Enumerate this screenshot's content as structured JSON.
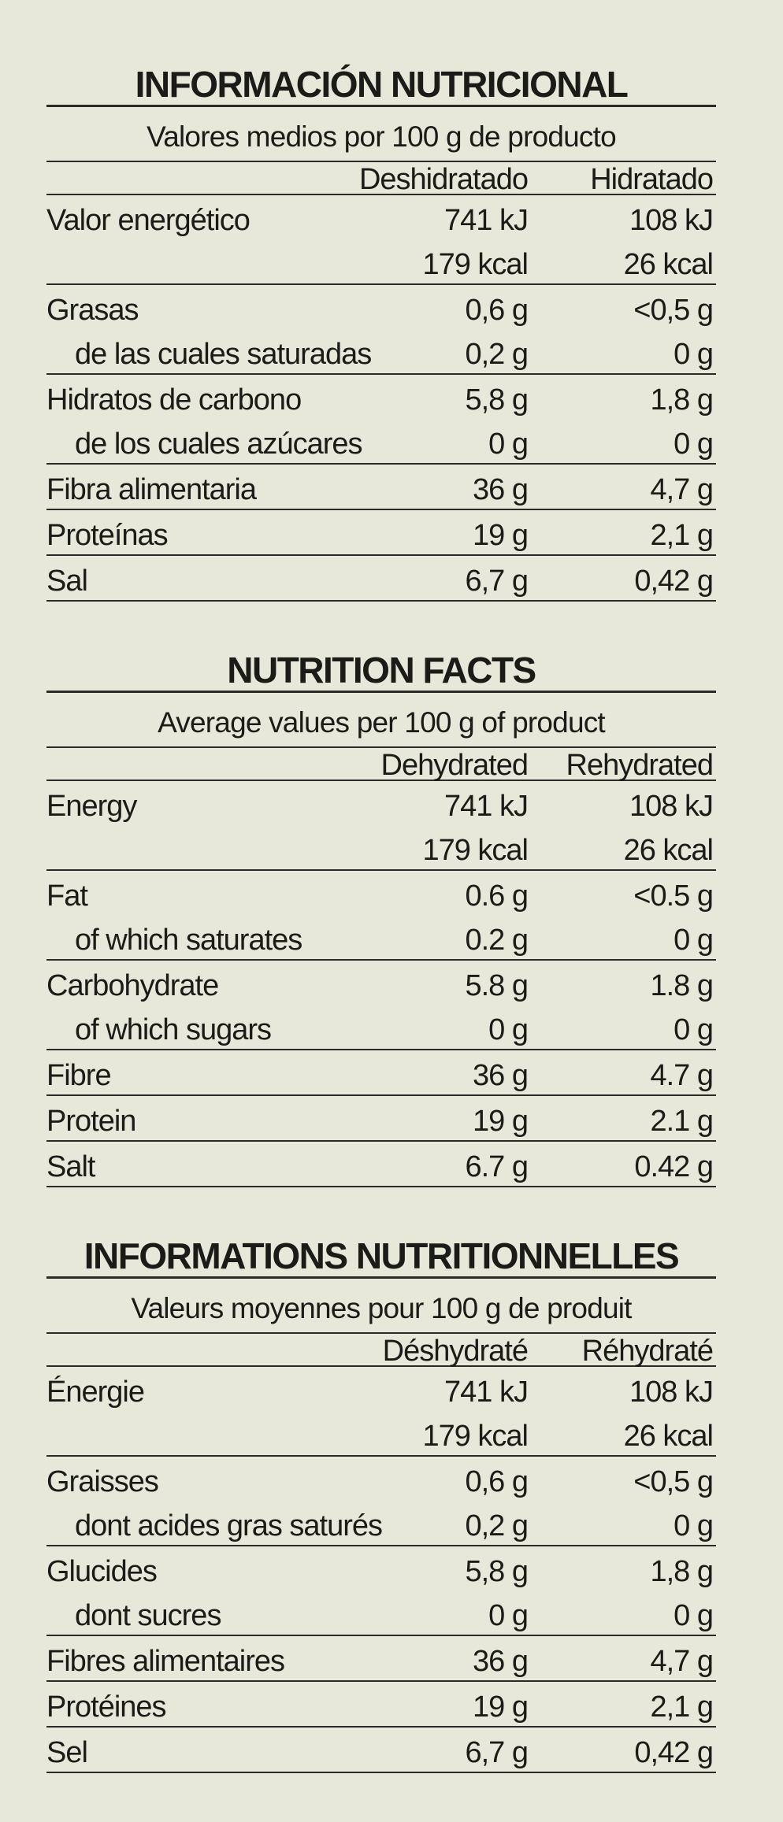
{
  "sections": [
    {
      "title": "INFORMACIÓN NUTRICIONAL",
      "subtitle": "Valores medios por 100 g de producto",
      "columns": [
        "Deshidratado",
        "Hidratado"
      ],
      "groups": [
        {
          "rows": [
            {
              "label": "Valor energético",
              "values": [
                "741 kJ",
                "108 kJ"
              ]
            },
            {
              "values": [
                "179 kcal",
                "26 kcal"
              ]
            }
          ]
        },
        {
          "rows": [
            {
              "label": "Grasas",
              "values": [
                "0,6 g",
                "<0,5 g"
              ]
            },
            {
              "label": "de las cuales saturadas",
              "indent": true,
              "values": [
                "0,2 g",
                "0 g"
              ]
            }
          ]
        },
        {
          "rows": [
            {
              "label": "Hidratos de carbono",
              "values": [
                "5,8 g",
                "1,8 g"
              ]
            },
            {
              "label": "de los cuales azúcares",
              "indent": true,
              "values": [
                "0 g",
                "0 g"
              ]
            }
          ]
        },
        {
          "rows": [
            {
              "label": "Fibra alimentaria",
              "values": [
                "36 g",
                "4,7 g"
              ]
            }
          ]
        },
        {
          "rows": [
            {
              "label": "Proteínas",
              "values": [
                "19 g",
                "2,1 g"
              ]
            }
          ]
        },
        {
          "rows": [
            {
              "label": "Sal",
              "values": [
                "6,7 g",
                "0,42 g"
              ]
            }
          ]
        }
      ]
    },
    {
      "title": "NUTRITION FACTS",
      "subtitle": "Average values per 100 g of product",
      "columns": [
        "Dehydrated",
        "Rehydrated"
      ],
      "groups": [
        {
          "rows": [
            {
              "label": "Energy",
              "values": [
                "741 kJ",
                "108 kJ"
              ]
            },
            {
              "values": [
                "179 kcal",
                "26 kcal"
              ]
            }
          ]
        },
        {
          "rows": [
            {
              "label": "Fat",
              "values": [
                "0.6 g",
                "<0.5 g"
              ]
            },
            {
              "label": "of which saturates",
              "indent": true,
              "values": [
                "0.2 g",
                "0 g"
              ]
            }
          ]
        },
        {
          "rows": [
            {
              "label": "Carbohydrate",
              "values": [
                "5.8 g",
                "1.8 g"
              ]
            },
            {
              "label": "of which sugars",
              "indent": true,
              "values": [
                "0 g",
                "0 g"
              ]
            }
          ]
        },
        {
          "rows": [
            {
              "label": "Fibre",
              "values": [
                "36 g",
                "4.7 g"
              ]
            }
          ]
        },
        {
          "rows": [
            {
              "label": "Protein",
              "values": [
                "19 g",
                "2.1 g"
              ]
            }
          ]
        },
        {
          "rows": [
            {
              "label": "Salt",
              "values": [
                "6.7 g",
                "0.42 g"
              ]
            }
          ]
        }
      ]
    },
    {
      "title": "INFORMATIONS NUTRITIONNELLES",
      "subtitle": "Valeurs moyennes pour 100 g de produit",
      "columns": [
        "Déshydraté",
        "Réhydraté"
      ],
      "groups": [
        {
          "rows": [
            {
              "label": "Énergie",
              "values": [
                "741 kJ",
                "108 kJ"
              ]
            },
            {
              "values": [
                "179 kcal",
                "26 kcal"
              ]
            }
          ]
        },
        {
          "rows": [
            {
              "label": "Graisses",
              "values": [
                "0,6 g",
                "<0,5 g"
              ]
            },
            {
              "label": "dont acides gras saturés",
              "indent": true,
              "values": [
                "0,2 g",
                "0 g"
              ]
            }
          ]
        },
        {
          "rows": [
            {
              "label": "Glucides",
              "values": [
                "5,8 g",
                "1,8 g"
              ]
            },
            {
              "label": "dont sucres",
              "indent": true,
              "values": [
                "0 g",
                "0 g"
              ]
            }
          ]
        },
        {
          "rows": [
            {
              "label": "Fibres alimentaires",
              "values": [
                "36 g",
                "4,7 g"
              ]
            }
          ]
        },
        {
          "rows": [
            {
              "label": "Protéines",
              "values": [
                "19 g",
                "2,1 g"
              ]
            }
          ]
        },
        {
          "rows": [
            {
              "label": "Sel",
              "values": [
                "6,7 g",
                "0,42 g"
              ]
            }
          ]
        }
      ]
    }
  ]
}
